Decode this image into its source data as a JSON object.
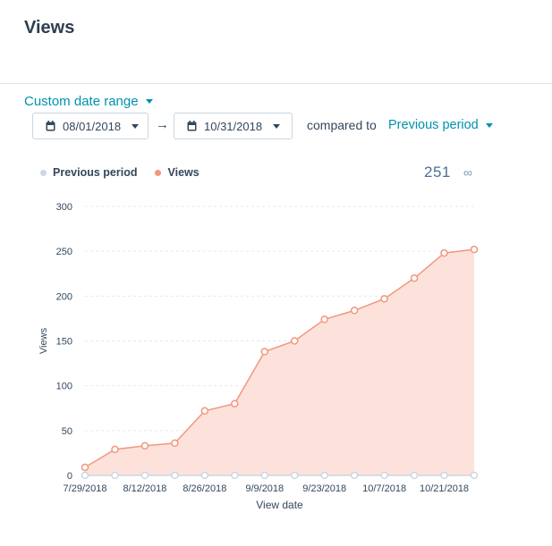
{
  "header": {
    "title": "Views"
  },
  "filters": {
    "range_label": "Custom date range",
    "start_date": "08/01/2018",
    "end_date": "10/31/2018",
    "compared_label": "compared to",
    "compare_option": "Previous period"
  },
  "summary": {
    "total": "251"
  },
  "icons": [
    "calendar-icon",
    "arrow-right-icon",
    "infinity-icon",
    "caret-down-icon"
  ],
  "colors": {
    "views": "#f2967c",
    "views_fill": "#fde2dc",
    "previous": "#cbd6e2",
    "accent": "#0091ae"
  },
  "chart_data": {
    "type": "area",
    "xlabel": "View date",
    "ylabel": "Views",
    "ylim": [
      0,
      300
    ],
    "yticks": [
      0,
      50,
      100,
      150,
      200,
      250,
      300
    ],
    "grid": true,
    "legend": "top-left",
    "x": [
      "7/29/2018",
      "8/5/2018",
      "8/12/2018",
      "8/19/2018",
      "8/26/2018",
      "9/2/2018",
      "9/9/2018",
      "9/16/2018",
      "9/23/2018",
      "9/30/2018",
      "10/7/2018",
      "10/14/2018",
      "10/21/2018",
      "10/28/2018"
    ],
    "xtick_labels": [
      "7/29/2018",
      "8/12/2018",
      "8/26/2018",
      "9/9/2018",
      "9/23/2018",
      "10/7/2018",
      "10/21/2018"
    ],
    "series": [
      {
        "name": "Previous period",
        "values": [
          0,
          0,
          0,
          0,
          0,
          0,
          0,
          0,
          0,
          0,
          0,
          0,
          0,
          0
        ]
      },
      {
        "name": "Views",
        "values": [
          9,
          29,
          33,
          36,
          72,
          80,
          138,
          150,
          174,
          184,
          197,
          220,
          248,
          252
        ]
      }
    ]
  }
}
